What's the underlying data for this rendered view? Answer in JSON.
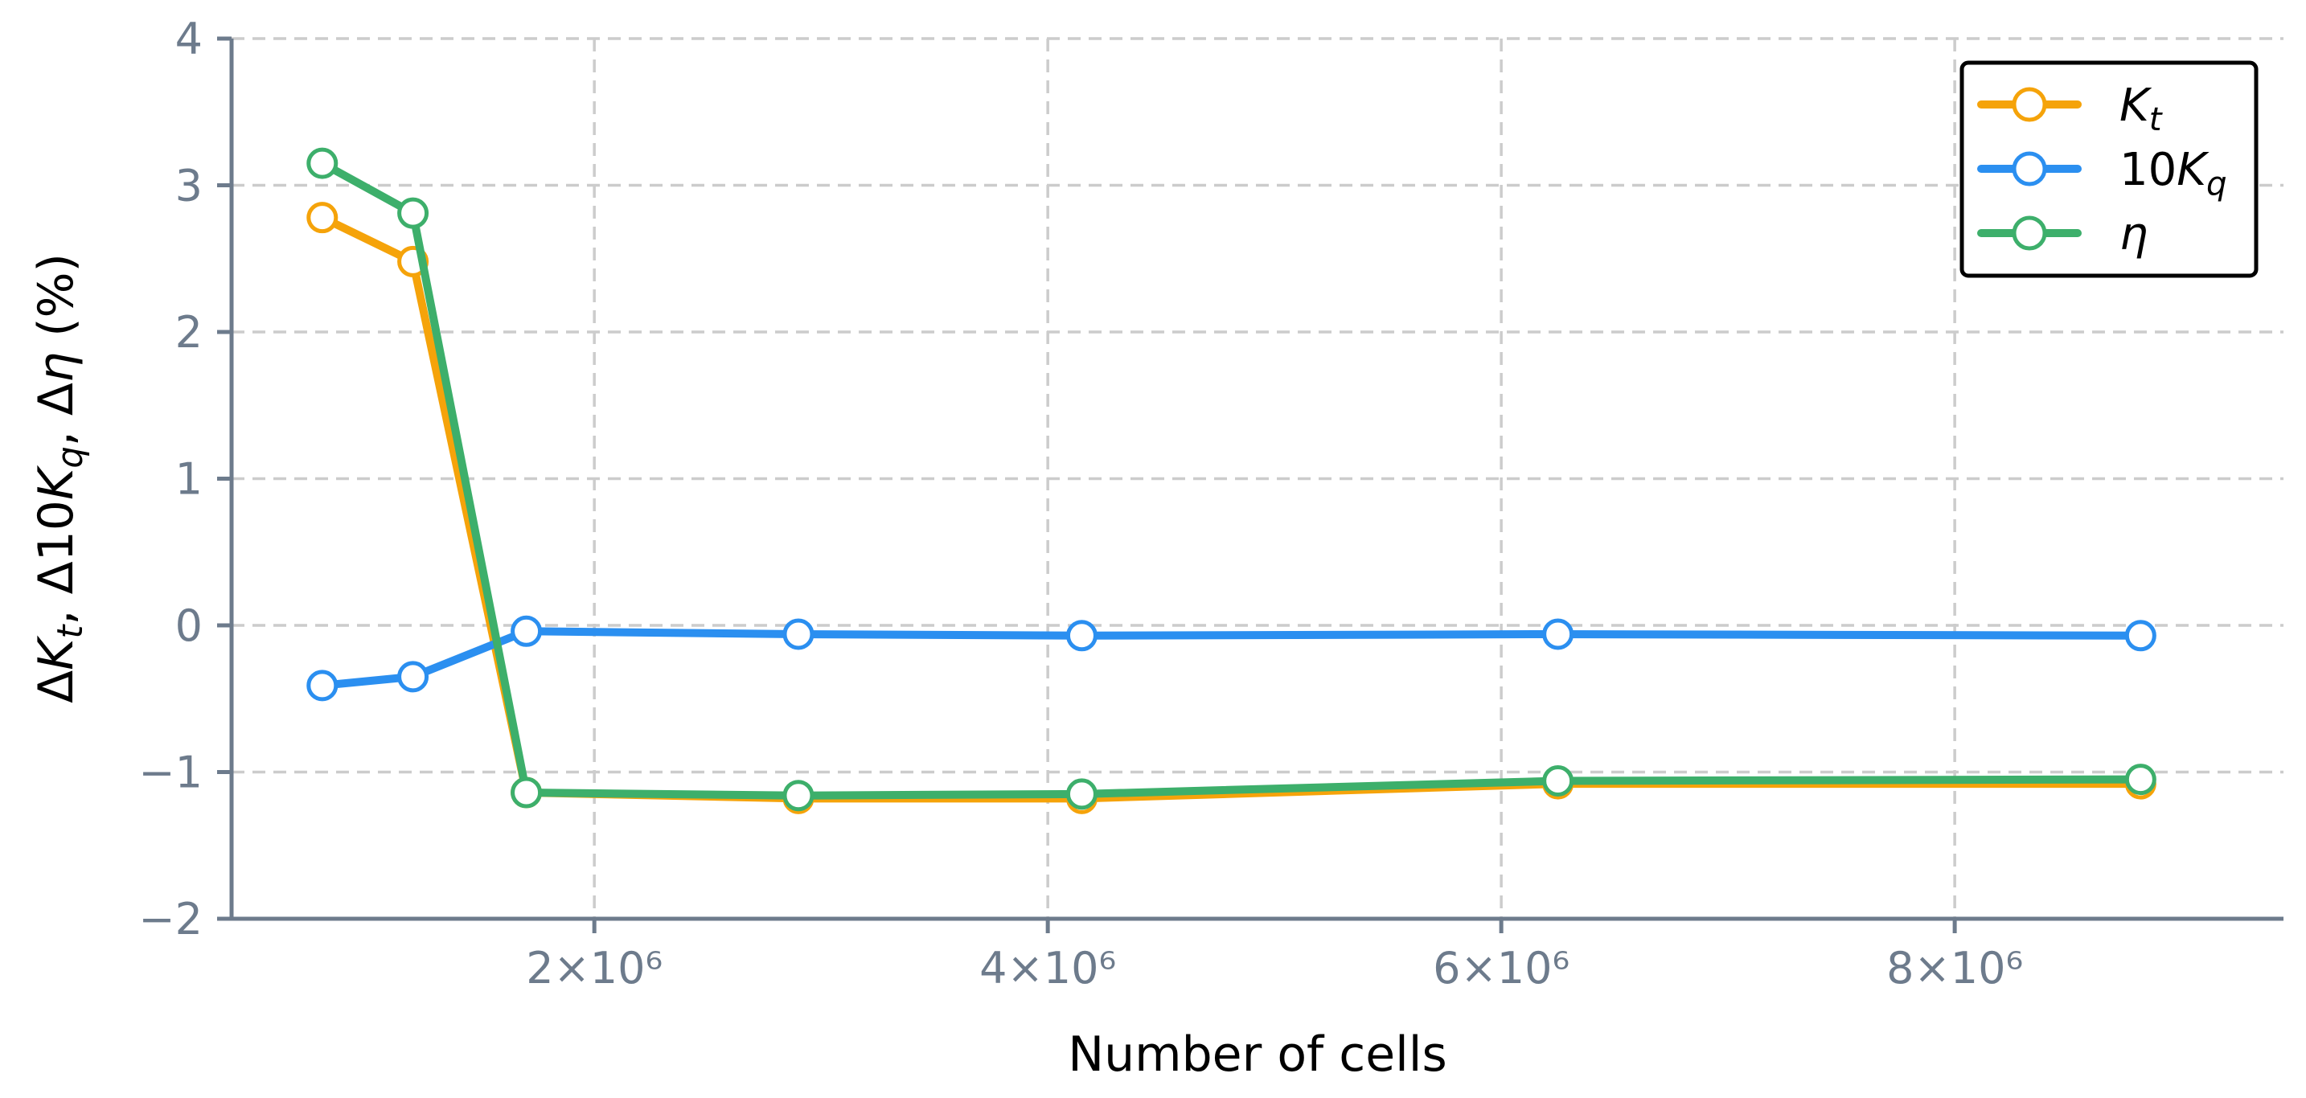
{
  "chart_data": {
    "type": "line",
    "xlabel": "Number of cells",
    "ylabel": "ΔK_t, Δ10K_q, Δη (%)",
    "xlim": [
      400000,
      9450000
    ],
    "ylim": [
      -2,
      4
    ],
    "x": [
      800000,
      1200000,
      1700000,
      2900000,
      4150000,
      6250000,
      8820000
    ],
    "x_ticks": [
      {
        "value": 2000000,
        "label": "2×10⁶"
      },
      {
        "value": 4000000,
        "label": "4×10⁶"
      },
      {
        "value": 6000000,
        "label": "6×10⁶"
      },
      {
        "value": 8000000,
        "label": "8×10⁶"
      }
    ],
    "y_ticks": [
      {
        "value": -2,
        "label": "−2"
      },
      {
        "value": -1,
        "label": "−1"
      },
      {
        "value": 0,
        "label": "0"
      },
      {
        "value": 1,
        "label": "1"
      },
      {
        "value": 2,
        "label": "2"
      },
      {
        "value": 3,
        "label": "3"
      },
      {
        "value": 4,
        "label": "4"
      }
    ],
    "grid": true,
    "legend_position": "top-right",
    "series": [
      {
        "name": "K_t",
        "color": "#f5a30a",
        "values": [
          2.78,
          2.48,
          -1.14,
          -1.18,
          -1.18,
          -1.08,
          -1.08
        ]
      },
      {
        "name": "10K_q",
        "color": "#2b8ff0",
        "values": [
          -0.41,
          -0.35,
          -0.04,
          -0.06,
          -0.07,
          -0.06,
          -0.07
        ]
      },
      {
        "name": "η",
        "color": "#3daf6b",
        "values": [
          3.15,
          2.81,
          -1.14,
          -1.16,
          -1.15,
          -1.06,
          -1.05
        ]
      }
    ]
  }
}
